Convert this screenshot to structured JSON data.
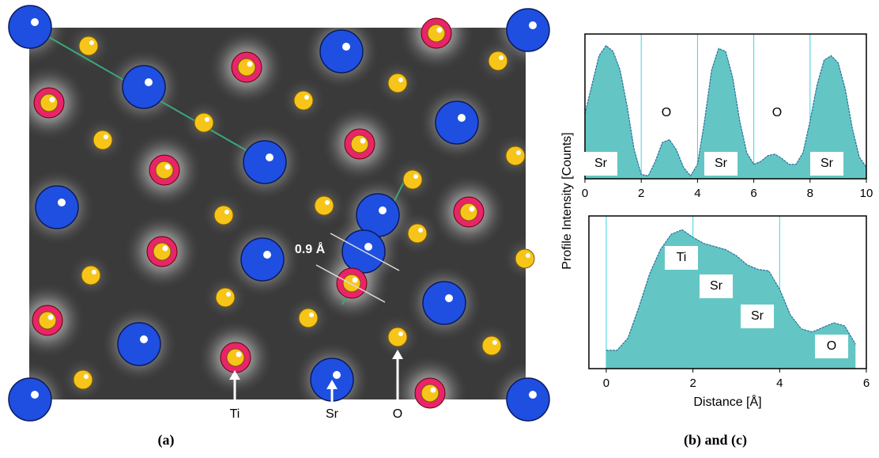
{
  "figure": {
    "panel_a_label": "(a)",
    "panel_bc_label": "(b) and  (c)"
  },
  "image": {
    "scale_label": "0.9 Å",
    "arrow_labels": [
      "Ti",
      "Sr",
      "O"
    ]
  },
  "y_label": "Profile Intensity [Counts]",
  "chart_data": [
    {
      "type": "area",
      "color": "#63c6c4",
      "line_color": "#2a6f9a",
      "grid": true,
      "x": [
        0,
        0.25,
        0.5,
        0.75,
        1,
        1.25,
        1.5,
        1.75,
        2,
        2.25,
        2.5,
        2.75,
        3,
        3.25,
        3.5,
        3.75,
        4,
        4.25,
        4.5,
        4.75,
        5,
        5.25,
        5.5,
        5.75,
        6,
        6.25,
        6.5,
        6.75,
        7,
        7.25,
        7.5,
        7.75,
        8,
        8.25,
        8.5,
        8.75,
        9,
        9.25,
        9.5,
        9.75,
        10
      ],
      "values": [
        45,
        65,
        85,
        92,
        88,
        75,
        50,
        20,
        3,
        2,
        12,
        25,
        27,
        20,
        8,
        2,
        10,
        40,
        75,
        90,
        88,
        70,
        40,
        18,
        10,
        12,
        16,
        17,
        14,
        10,
        10,
        18,
        40,
        65,
        82,
        85,
        80,
        62,
        35,
        15,
        8
      ],
      "xlim": [
        0,
        10
      ],
      "xticks": [
        0,
        2,
        4,
        6,
        8,
        10
      ],
      "ylim": [
        0,
        100
      ],
      "annotations": [
        "Sr",
        "O",
        "Sr",
        "O",
        "Sr"
      ]
    },
    {
      "type": "area",
      "color": "#63c6c4",
      "line_color": "#2a6f9a",
      "grid": true,
      "x": [
        0,
        0.25,
        0.5,
        0.75,
        1,
        1.25,
        1.5,
        1.75,
        2,
        2.25,
        2.5,
        2.75,
        3,
        3.25,
        3.5,
        3.75,
        4,
        4.25,
        4.5,
        4.75,
        5,
        5.25,
        5.5,
        5.75
      ],
      "values": [
        12,
        12,
        20,
        40,
        62,
        78,
        88,
        91,
        86,
        82,
        80,
        78,
        74,
        68,
        65,
        64,
        52,
        35,
        26,
        24,
        27,
        30,
        28,
        16
      ],
      "xlim": [
        -0.4,
        6
      ],
      "xticks": [
        0,
        2,
        4,
        6
      ],
      "ylim": [
        0,
        100
      ],
      "xlabel": "Distance [Å]",
      "annotations": [
        "Ti",
        "Sr",
        "Sr",
        "O"
      ]
    }
  ]
}
